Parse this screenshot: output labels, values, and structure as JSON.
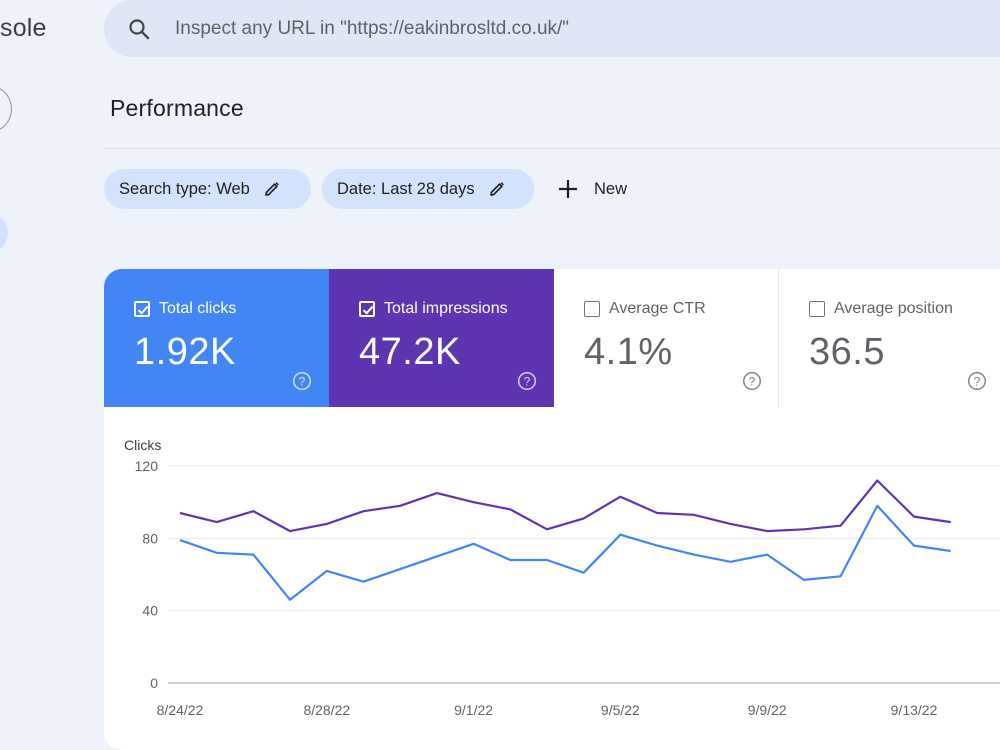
{
  "app": {
    "title_fragment": "sole"
  },
  "search": {
    "placeholder": "Inspect any URL in \"https://eakinbrosltd.co.uk/\"",
    "icon": "search-icon"
  },
  "page": {
    "title": "Performance"
  },
  "filters": {
    "search_type": "Search type: Web",
    "date": "Date: Last 28 days",
    "new_label": "New"
  },
  "metrics": [
    {
      "label": "Total clicks",
      "value": "1.92K",
      "checked": true,
      "color": "#4285f4"
    },
    {
      "label": "Total impressions",
      "value": "47.2K",
      "checked": true,
      "color": "#5e35b1"
    },
    {
      "label": "Average CTR",
      "value": "4.1%",
      "checked": false,
      "color": "#ffffff"
    },
    {
      "label": "Average position",
      "value": "36.5",
      "checked": false,
      "color": "#ffffff"
    }
  ],
  "chart_data": {
    "type": "line",
    "ylabel": "Clicks",
    "ylim": [
      0,
      120
    ],
    "yticks": [
      0,
      40,
      80,
      120
    ],
    "xtick_labels": [
      "8/24/22",
      "8/28/22",
      "9/1/22",
      "9/5/22",
      "9/9/22",
      "9/13/22"
    ],
    "x": [
      "8/24/22",
      "8/25/22",
      "8/26/22",
      "8/27/22",
      "8/28/22",
      "8/29/22",
      "8/30/22",
      "8/31/22",
      "9/1/22",
      "9/2/22",
      "9/3/22",
      "9/4/22",
      "9/5/22",
      "9/6/22",
      "9/7/22",
      "9/8/22",
      "9/9/22",
      "9/10/22",
      "9/11/22",
      "9/12/22",
      "9/13/22",
      "9/14/22"
    ],
    "series": [
      {
        "color": "#4285f4",
        "values": [
          79,
          72,
          71,
          46,
          62,
          56,
          63,
          70,
          77,
          68,
          68,
          61,
          82,
          76,
          71,
          67,
          71,
          57,
          59,
          98,
          76,
          73
        ]
      },
      {
        "color": "#5e35b1",
        "values": [
          94,
          89,
          95,
          84,
          88,
          95,
          98,
          105,
          100,
          96,
          85,
          91,
          103,
          94,
          93,
          88,
          84,
          85,
          87,
          112,
          92,
          89
        ]
      }
    ],
    "grid": true
  }
}
